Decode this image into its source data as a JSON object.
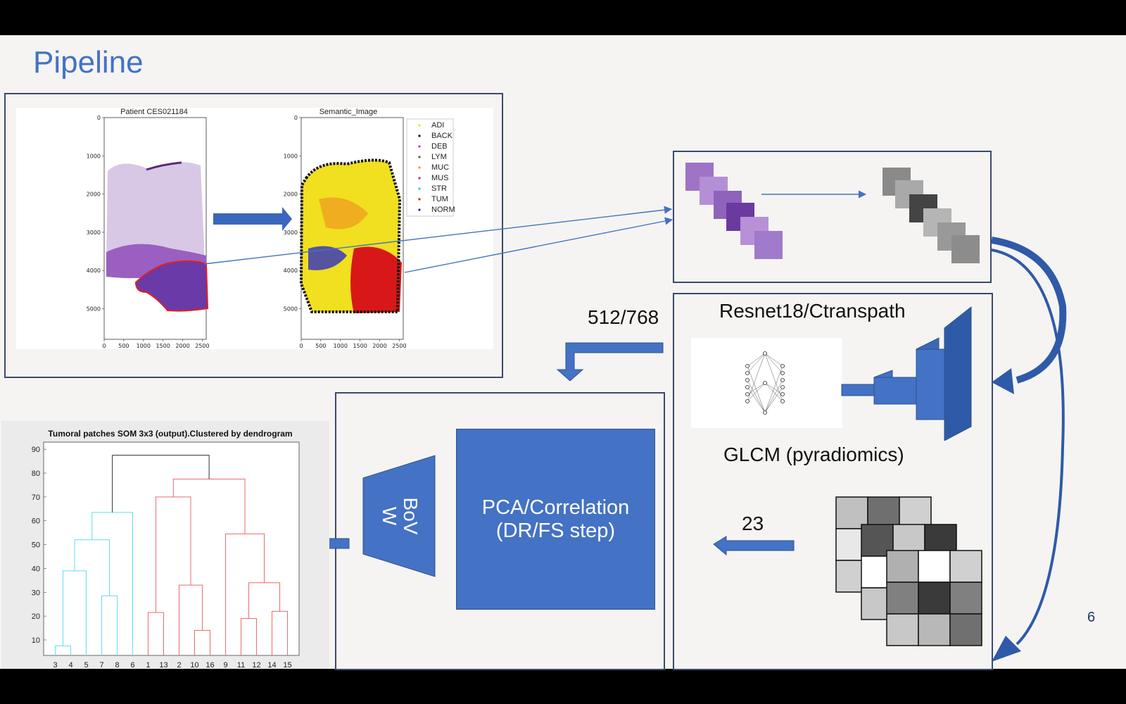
{
  "slide": {
    "title": "Pipeline",
    "page_number": "6"
  },
  "patient_plot": {
    "title": "Patient CES021184",
    "y_ticks": [
      "0",
      "1000",
      "2000",
      "3000",
      "4000",
      "5000"
    ],
    "x_ticks": [
      "0",
      "500",
      "1000",
      "1500",
      "2000",
      "2500"
    ]
  },
  "semantic_plot": {
    "title": "Semantic_Image",
    "y_ticks": [
      "0",
      "1000",
      "2000",
      "3000",
      "4000",
      "5000"
    ],
    "x_ticks": [
      "0",
      "500",
      "1000",
      "1500",
      "2000",
      "2500"
    ],
    "legend": [
      {
        "label": "ADI",
        "color": "#e8e800"
      },
      {
        "label": "BACK",
        "color": "#111111"
      },
      {
        "label": "DEB",
        "color": "#e020e0"
      },
      {
        "label": "LYM",
        "color": "#208020"
      },
      {
        "label": "MUC",
        "color": "#f0a020"
      },
      {
        "label": "MUS",
        "color": "#c02080"
      },
      {
        "label": "STR",
        "color": "#20d0d0"
      },
      {
        "label": "TUM",
        "color": "#e02020"
      },
      {
        "label": "NORM",
        "color": "#2020c0"
      }
    ]
  },
  "labels": {
    "features_dim": "512/768",
    "resnet": "Resnet18/Ctranspath",
    "glcm": "GLCM (pyradiomics)",
    "glcm_dim": "23",
    "pca": [
      "PCA/Correlation",
      "(DR/FS step)"
    ],
    "bow": [
      "BoV",
      "W"
    ]
  },
  "chart_data": {
    "type": "dendrogram",
    "title": "Tumoral patches SOM 3x3 (output).Clustered by dendrogram",
    "leaf_labels": [
      "3",
      "4",
      "5",
      "7",
      "8",
      "6",
      "1",
      "13",
      "2",
      "10",
      "16",
      "9",
      "11",
      "12",
      "14",
      "15"
    ],
    "y_ticks": [
      10,
      20,
      30,
      40,
      50,
      60,
      70,
      80,
      90
    ],
    "ylim": [
      3.5,
      93
    ],
    "merges": [
      {
        "left": "3",
        "right": "4",
        "height": 7.5,
        "cluster": "cyan"
      },
      {
        "left": "(3,4)",
        "right": "5",
        "height": 39,
        "cluster": "cyan"
      },
      {
        "left": "7",
        "right": "8",
        "height": 28.5,
        "cluster": "cyan"
      },
      {
        "left": "(3,4,5)",
        "right": "(7,8)",
        "height": 52,
        "cluster": "cyan"
      },
      {
        "left": "(3,4,5,7,8)",
        "right": "6",
        "height": 63.5,
        "cluster": "cyan"
      },
      {
        "left": "1",
        "right": "13",
        "height": 21.5,
        "cluster": "red"
      },
      {
        "left": "10",
        "right": "16",
        "height": 14,
        "cluster": "red"
      },
      {
        "left": "2",
        "right": "(10,16)",
        "height": 33,
        "cluster": "red"
      },
      {
        "left": "(1,13)",
        "right": "(2,10,16)",
        "height": 70,
        "cluster": "red"
      },
      {
        "left": "11",
        "right": "12",
        "height": 19,
        "cluster": "red"
      },
      {
        "left": "14",
        "right": "15",
        "height": 22,
        "cluster": "red"
      },
      {
        "left": "(11,12)",
        "right": "(14,15)",
        "height": 34,
        "cluster": "red"
      },
      {
        "left": "9",
        "right": "(11,12,14,15)",
        "height": 54.5,
        "cluster": "red"
      },
      {
        "left": "(1,13,2,10,16)",
        "right": "(9,11,12,14,15)",
        "height": 77.5,
        "cluster": "red"
      },
      {
        "left": "cyan-cluster",
        "right": "red-cluster",
        "height": 87.5,
        "cluster": "black"
      }
    ],
    "cluster_colors": {
      "cyan": "#5fe0ee",
      "red": "#ee6b6b",
      "black": "#333333"
    }
  }
}
